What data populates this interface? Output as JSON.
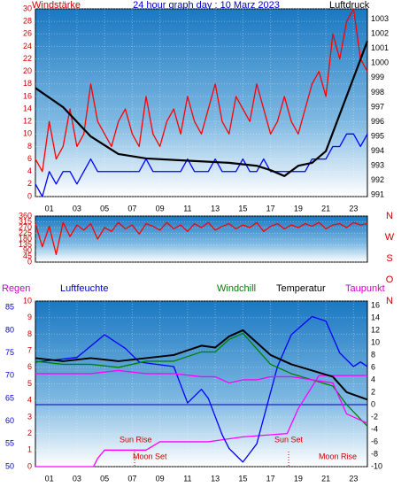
{
  "chart_data": [
    {
      "type": "line",
      "title": "24 hour graph day : 10 Marz 2023",
      "ylabel": "Windstärke",
      "y2label": "Luftdruck",
      "x": [
        0,
        0.5,
        1,
        1.5,
        2,
        2.5,
        3,
        3.5,
        4,
        4.5,
        5,
        5.5,
        6,
        6.5,
        7,
        7.5,
        8,
        8.5,
        9,
        9.5,
        10,
        10.5,
        11,
        11.5,
        12,
        12.5,
        13,
        13.5,
        14,
        14.5,
        15,
        15.5,
        16,
        16.5,
        17,
        17.5,
        18,
        18.5,
        19,
        19.5,
        20,
        20.5,
        21,
        21.5,
        22,
        22.5,
        23,
        23.5,
        24
      ],
      "xlim": [
        0,
        24
      ],
      "xticks": [
        {
          "value": 1,
          "label": "01"
        },
        {
          "value": 3,
          "label": "03"
        },
        {
          "value": 5,
          "label": "05"
        },
        {
          "value": 7,
          "label": "07"
        },
        {
          "value": 9,
          "label": "09"
        },
        {
          "value": 11,
          "label": "11"
        },
        {
          "value": 13,
          "label": "13"
        },
        {
          "value": 15,
          "label": "15"
        },
        {
          "value": 17,
          "label": "17"
        },
        {
          "value": 19,
          "label": "19"
        },
        {
          "value": 21,
          "label": "21"
        },
        {
          "value": 23,
          "label": "23"
        }
      ],
      "ylim": [
        0,
        30
      ],
      "yticks": [
        0,
        2,
        4,
        6,
        8,
        10,
        12,
        14,
        16,
        18,
        20,
        22,
        24,
        26,
        28,
        30
      ],
      "y2lim": [
        990.9,
        1003.7
      ],
      "y2ticks": [
        991,
        992,
        993,
        994,
        995,
        996,
        997,
        998,
        999,
        1000,
        1001,
        1002,
        1003
      ],
      "grid": true,
      "series": [
        {
          "color": "#ff0000",
          "values": [
            6,
            4,
            12,
            6,
            8,
            14,
            8,
            10,
            18,
            12,
            10,
            8,
            12,
            14,
            10,
            8,
            16,
            10,
            8,
            12,
            14,
            10,
            16,
            12,
            10,
            14,
            18,
            12,
            10,
            16,
            14,
            12,
            18,
            14,
            10,
            12,
            16,
            12,
            10,
            14,
            18,
            20,
            16,
            26,
            22,
            28,
            30,
            22,
            20
          ]
        },
        {
          "color": "#0000ff",
          "values": [
            2,
            0,
            4,
            2,
            4,
            4,
            2,
            4,
            6,
            4,
            4,
            4,
            4,
            4,
            4,
            4,
            6,
            4,
            4,
            4,
            4,
            4,
            6,
            4,
            4,
            4,
            6,
            4,
            4,
            4,
            6,
            4,
            4,
            6,
            4,
            4,
            4,
            4,
            4,
            4,
            6,
            6,
            6,
            8,
            8,
            10,
            10,
            8,
            10
          ]
        },
        {
          "color": "#000000",
          "axis": "y2",
          "x": [
            0,
            2,
            4,
            6,
            8,
            10,
            12,
            14,
            16,
            17,
            18,
            19,
            20,
            21,
            22,
            23,
            24
          ],
          "values": [
            998.3,
            997,
            995,
            993.8,
            993.5,
            993.4,
            993.3,
            993.2,
            993,
            992.7,
            992.3,
            993,
            993.2,
            994,
            996.5,
            999,
            1001.5
          ]
        }
      ]
    },
    {
      "type": "line",
      "x": [
        0,
        0.5,
        1,
        1.5,
        2,
        2.5,
        3,
        3.5,
        4,
        4.5,
        5,
        5.5,
        6,
        6.5,
        7,
        7.5,
        8,
        8.5,
        9,
        9.5,
        10,
        10.5,
        11,
        11.5,
        12,
        12.5,
        13,
        13.5,
        14,
        14.5,
        15,
        15.5,
        16,
        16.5,
        17,
        17.5,
        18,
        18.5,
        19,
        19.5,
        20,
        20.5,
        21,
        21.5,
        22,
        22.5,
        23,
        23.5,
        24
      ],
      "xlim": [
        0,
        24
      ],
      "ylim": [
        0,
        360
      ],
      "yticks": [
        0,
        45,
        90,
        135,
        180,
        225,
        270,
        315,
        360
      ],
      "direction_labels": [
        "N",
        "W",
        "S",
        "O",
        "N"
      ],
      "grid": true,
      "series": [
        {
          "color": "#ff0000",
          "values": [
            300,
            120,
            280,
            60,
            310,
            200,
            290,
            250,
            300,
            180,
            270,
            240,
            310,
            260,
            290,
            220,
            300,
            280,
            250,
            310,
            260,
            290,
            240,
            300,
            270,
            310,
            250,
            280,
            300,
            260,
            290,
            270,
            310,
            240,
            280,
            300,
            260,
            290,
            270,
            300,
            280,
            310,
            260,
            290,
            300,
            270,
            310,
            290,
            300
          ]
        }
      ]
    },
    {
      "type": "line",
      "ylabel": "Regen",
      "y3label": "Luftfeuchte",
      "x": [
        0,
        2,
        4,
        6,
        8,
        10,
        12,
        13,
        14,
        15,
        16,
        17,
        18.5,
        20,
        21.5,
        22.5,
        24
      ],
      "xlim": [
        0,
        24
      ],
      "xticks": [
        {
          "value": 1,
          "label": "01"
        },
        {
          "value": 3,
          "label": "03"
        },
        {
          "value": 5,
          "label": "05"
        },
        {
          "value": 7,
          "label": "07"
        },
        {
          "value": 9,
          "label": "09"
        },
        {
          "value": 11,
          "label": "11"
        },
        {
          "value": 13,
          "label": "13"
        },
        {
          "value": 15,
          "label": "15"
        },
        {
          "value": 17,
          "label": "17"
        },
        {
          "value": 19,
          "label": "19"
        },
        {
          "value": 21,
          "label": "21"
        },
        {
          "value": 23,
          "label": "23"
        }
      ],
      "ylim": [
        0,
        10
      ],
      "yticks": [
        0,
        1,
        2,
        3,
        4,
        5,
        6,
        7,
        8,
        9,
        10
      ],
      "y2lim": [
        -10,
        16.7
      ],
      "y2ticks": [
        -10,
        -8,
        -6,
        -4,
        -2,
        0,
        2,
        4,
        6,
        8,
        10,
        12,
        14,
        16
      ],
      "y3lim": [
        50,
        86.4
      ],
      "y3ticks": [
        50,
        55,
        60,
        65,
        70,
        75,
        80,
        85
      ],
      "annotations": [
        "Sun Rise",
        "Moon Set",
        "Sun Set",
        "Moon Rise"
      ],
      "grid": true,
      "series": [
        {
          "color": "#ff00ff",
          "axis": "y",
          "x": [
            0,
            4.2,
            4.5,
            5,
            8,
            9,
            12.5,
            15,
            18.2,
            19,
            20.5,
            24
          ],
          "values": [
            0,
            0,
            0.5,
            1,
            1,
            1.5,
            1.5,
            1.8,
            2,
            3.5,
            5.5,
            5.5
          ]
        },
        {
          "color": "#0000ff",
          "axis": "y3",
          "x": [
            0,
            3,
            5,
            6.5,
            7.5,
            10,
            11,
            12,
            12.5,
            13.5,
            14,
            15,
            16,
            17.5,
            18.5,
            20,
            21,
            22,
            23,
            23.5,
            24
          ],
          "values": [
            73,
            74,
            79,
            76,
            73,
            72,
            64,
            67,
            65,
            57,
            54,
            51,
            55,
            72,
            79,
            83,
            82,
            75,
            72,
            73,
            72
          ]
        },
        {
          "name": "Windchill",
          "color": "#008000",
          "axis": "y2",
          "values": [
            7,
            6.5,
            6.5,
            6,
            7,
            7,
            8.5,
            8.5,
            10.5,
            11.5,
            9,
            6.5,
            5,
            4,
            3,
            0,
            -3.5
          ]
        },
        {
          "name": "Temperatur",
          "color": "#000000",
          "axis": "y2",
          "values": [
            7.5,
            7,
            7.5,
            7,
            7.5,
            8,
            9.5,
            9.2,
            11,
            12,
            10,
            8,
            6.5,
            5.5,
            4.5,
            2,
            0.8
          ]
        },
        {
          "name": "Taupunkt",
          "color": "#ff00ff",
          "axis": "y2",
          "values": [
            5,
            5,
            5,
            5.5,
            5,
            5,
            4.5,
            4.5,
            3.5,
            4,
            4,
            4.5,
            4.5,
            4,
            3.5,
            -1.5,
            -3
          ]
        }
      ]
    }
  ]
}
